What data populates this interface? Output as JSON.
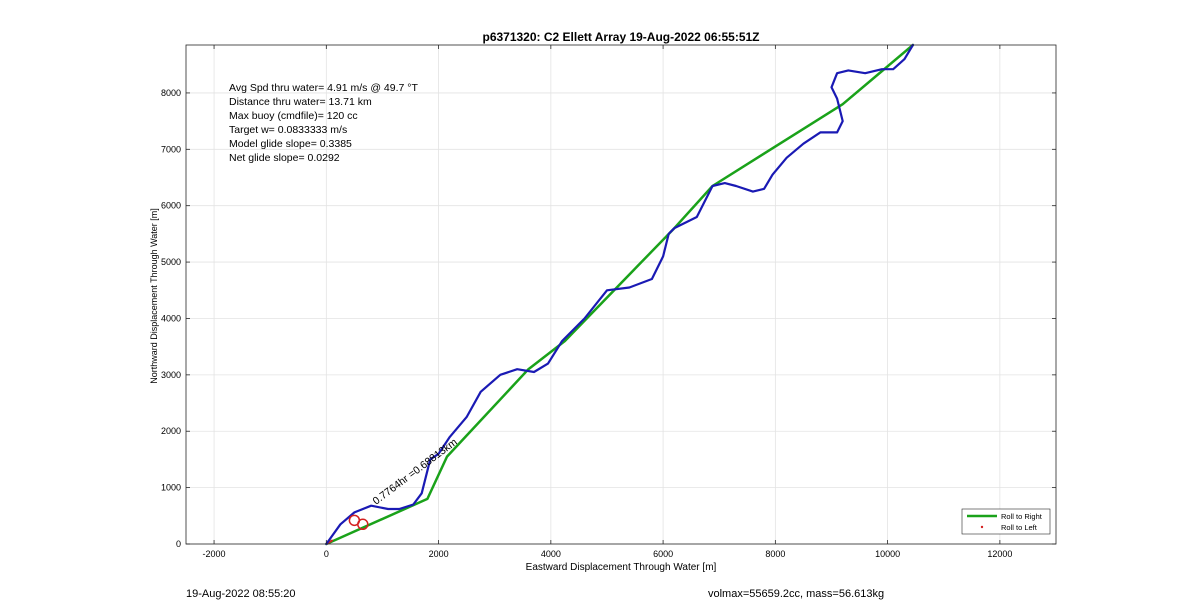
{
  "chart_data": {
    "type": "line",
    "title": "p6371320: C2 Ellett Array 19-Aug-2022 06:55:51Z",
    "xlabel": "Eastward Displacement Through Water [m]",
    "ylabel": "Northward Displacement Through Water [m]",
    "xlim": [
      -2500,
      13000
    ],
    "ylim": [
      0,
      8850
    ],
    "xticks": [
      -2000,
      0,
      2000,
      4000,
      6000,
      8000,
      10000,
      12000
    ],
    "yticks": [
      0,
      1000,
      2000,
      3000,
      4000,
      5000,
      6000,
      7000,
      8000
    ],
    "grid": true,
    "legend_position": "bottom-right",
    "annotations": [
      "Avg Spd thru water=  4.91 m/s @  49.7 °T",
      "Distance thru water= 13.71 km",
      "Max buoy (cmdfile)= 120 cc",
      "Target w= 0.0833333 m/s",
      "Model glide slope= 0.3385",
      "Net glide slope= 0.0292"
    ],
    "rotated_label": "0.7764hr =0.68813km",
    "series": [
      {
        "name": "Roll to Right",
        "color": "#1aa21a",
        "x": [
          0,
          1800,
          2150,
          3600,
          4250,
          6200,
          6880,
          9200,
          10450
        ],
        "y": [
          0,
          800,
          1550,
          3100,
          3600,
          5600,
          6350,
          7800,
          8850
        ]
      },
      {
        "name": "Roll to Left",
        "color": "#d42020",
        "x": [
          0,
          50,
          100
        ],
        "y": [
          0,
          30,
          60
        ]
      },
      {
        "name": "",
        "color": "#1a1ab4",
        "x": [
          0,
          250,
          500,
          800,
          1100,
          1300,
          1550,
          1700,
          1800,
          1850,
          2000,
          2200,
          2500,
          2750,
          3100,
          3400,
          3700,
          3950,
          4200,
          4600,
          5000,
          5400,
          5800,
          6000,
          6100,
          6200,
          6300,
          6600,
          6880,
          7100,
          7300,
          7600,
          7800,
          7950,
          8200,
          8500,
          8800,
          9100,
          9200,
          9100,
          9000,
          9100,
          9300,
          9600,
          9900,
          10100,
          10300,
          10450
        ],
        "y": [
          0,
          350,
          560,
          680,
          620,
          620,
          700,
          900,
          1300,
          1500,
          1600,
          1900,
          2250,
          2700,
          3000,
          3100,
          3050,
          3200,
          3600,
          4000,
          4500,
          4550,
          4700,
          5100,
          5500,
          5600,
          5650,
          5800,
          6350,
          6400,
          6350,
          6250,
          6300,
          6550,
          6850,
          7100,
          7300,
          7300,
          7500,
          7900,
          8100,
          8350,
          8400,
          8350,
          8420,
          8420,
          8600,
          8850
        ]
      }
    ],
    "markers": [
      {
        "x": 650,
        "y": 350,
        "shape": "circle",
        "color": "#d42020"
      },
      {
        "x": 500,
        "y": 420,
        "shape": "circle",
        "color": "#d42020"
      }
    ]
  },
  "legend": {
    "right_label": "Roll to Right",
    "left_label": "Roll to Left"
  },
  "footer": {
    "left": "19-Aug-2022 08:55:20",
    "right": "volmax=55659.2cc, mass=56.613kg"
  }
}
